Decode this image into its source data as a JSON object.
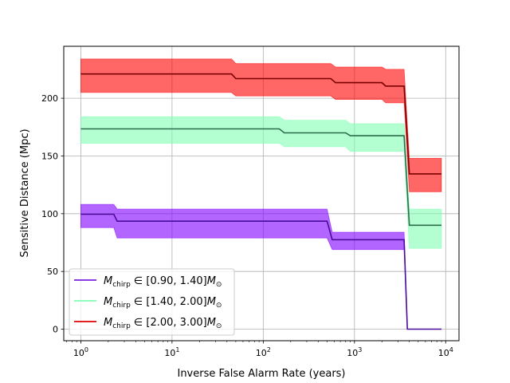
{
  "chart_data": {
    "type": "line",
    "title": "",
    "xlabel": "Inverse False Alarm Rate (years)",
    "ylabel": "Sensitive Distance (Mpc)",
    "xscale": "log",
    "xlim": [
      0.65,
      14000
    ],
    "ylim": [
      -10,
      245
    ],
    "grid": true,
    "legend_placement": "lower-left",
    "x_ticks": [
      {
        "value": 1,
        "base": "10",
        "exp": "0"
      },
      {
        "value": 10,
        "base": "10",
        "exp": "1"
      },
      {
        "value": 100,
        "base": "10",
        "exp": "2"
      },
      {
        "value": 1000,
        "base": "10",
        "exp": "3"
      },
      {
        "value": 10000,
        "base": "10",
        "exp": "4"
      }
    ],
    "y_ticks": [
      {
        "value": 0,
        "label": "0"
      },
      {
        "value": 50,
        "label": "50"
      },
      {
        "value": 100,
        "label": "100"
      },
      {
        "value": 150,
        "label": "150"
      },
      {
        "value": 200,
        "label": "200"
      }
    ],
    "series": [
      {
        "name_prefix": "M",
        "name_sub": "chirp",
        "name_range": "∈ [0.90, 1.40]",
        "name_unit_sub": "⊙",
        "line_color": "#4a0a9a",
        "legend_color": "#7a1fe0",
        "fill_color": "#8000ff",
        "x": [
          1,
          2.3,
          2.5,
          500,
          570,
          3500,
          3800,
          9000
        ],
        "y": [
          99.5,
          99.5,
          93.5,
          93.5,
          77.5,
          77.5,
          0,
          0
        ],
        "lower": [
          88,
          88,
          79,
          79,
          69,
          69,
          0,
          0
        ],
        "upper": [
          108,
          108,
          104,
          104,
          84,
          84,
          0,
          0
        ]
      },
      {
        "name_prefix": "M",
        "name_sub": "chirp",
        "name_range": "∈ [1.40, 2.00]",
        "name_unit_sub": "⊙",
        "line_color": "#2e6b4a",
        "legend_color": "#80ffb4",
        "fill_color": "#80ffb4",
        "x": [
          1,
          150,
          170,
          800,
          900,
          3500,
          4000,
          9000
        ],
        "y": [
          173.5,
          173.5,
          170,
          170,
          167.5,
          167.5,
          90,
          90
        ],
        "lower": [
          161,
          161,
          158,
          158,
          154,
          154,
          70,
          70
        ],
        "upper": [
          184,
          184,
          181,
          181,
          178,
          178,
          104,
          104
        ]
      },
      {
        "name_prefix": "M",
        "name_sub": "chirp",
        "name_range": "∈ [2.00, 3.00]",
        "name_unit_sub": "⊙",
        "line_color": "#7a0000",
        "legend_color": "#e00000",
        "fill_color": "#ff0000",
        "x": [
          1,
          45,
          50,
          550,
          620,
          2000,
          2200,
          3500,
          4000,
          9000
        ],
        "y": [
          221,
          221,
          217,
          217,
          213.5,
          213.5,
          210.5,
          210.5,
          134.5,
          134.5
        ],
        "lower": [
          205,
          205,
          202,
          202,
          199,
          199,
          196,
          196,
          119,
          119
        ],
        "upper": [
          234,
          234,
          230,
          230,
          227,
          227,
          225,
          225,
          148,
          148
        ]
      }
    ]
  }
}
